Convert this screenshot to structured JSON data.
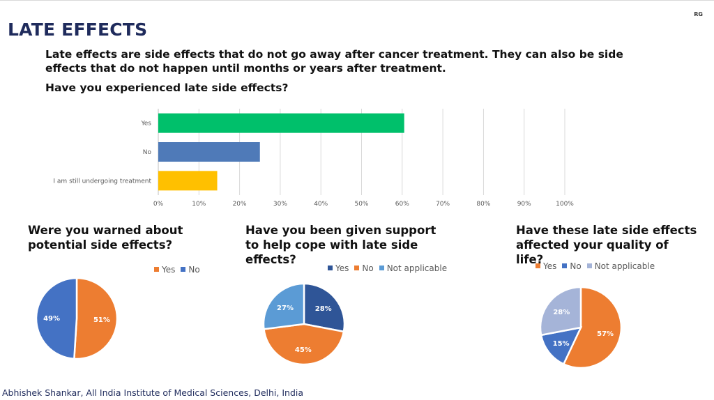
{
  "corner_mark": "RG",
  "title": "LATE EFFECTS",
  "intro": "Late effects are side effects that do not go away after cancer treatment. They can also be side effects that do not happen until months or years after treatment.",
  "footer": "Abhishek Shankar, All India Institute of Medical Sciences, Delhi, India",
  "chart_data": [
    {
      "type": "bar",
      "orientation": "horizontal",
      "title": "Have you experienced late side effects?",
      "categories": [
        "Yes",
        "No",
        "I am still undergoing treatment"
      ],
      "values": [
        60.5,
        25,
        14.5
      ],
      "colors": [
        "#00c06b",
        "#4f7ab8",
        "#ffc000"
      ],
      "xlim": [
        0,
        100
      ],
      "x_ticks": [
        "0%",
        "10%",
        "20%",
        "30%",
        "40%",
        "50%",
        "60%",
        "70%",
        "80%",
        "90%",
        "100%"
      ],
      "grid": true
    },
    {
      "type": "pie",
      "title": "Were you warned about potential side effects?",
      "labels": [
        "Yes",
        "No"
      ],
      "values": [
        51,
        49
      ],
      "data_labels": [
        "51%",
        "49%"
      ],
      "colors": [
        "#ed7d31",
        "#4472c4"
      ],
      "legend": "top"
    },
    {
      "type": "pie",
      "title": "Have you been given support to help cope with late side effects?",
      "labels": [
        "Yes",
        "No",
        "Not applicable"
      ],
      "values": [
        28,
        45,
        27
      ],
      "data_labels": [
        "28%",
        "45%",
        "27%"
      ],
      "colors": [
        "#2f5597",
        "#ed7d31",
        "#5b9bd5"
      ],
      "legend": "top"
    },
    {
      "type": "pie",
      "title": "Have these late side effects affected your quality of life?",
      "labels": [
        "Yes",
        "No",
        "Not applicable"
      ],
      "values": [
        57,
        15,
        28
      ],
      "data_labels": [
        "57%",
        "15%",
        "28%"
      ],
      "colors": [
        "#ed7d31",
        "#4472c4",
        "#a5b4d8"
      ],
      "legend": "top"
    }
  ]
}
